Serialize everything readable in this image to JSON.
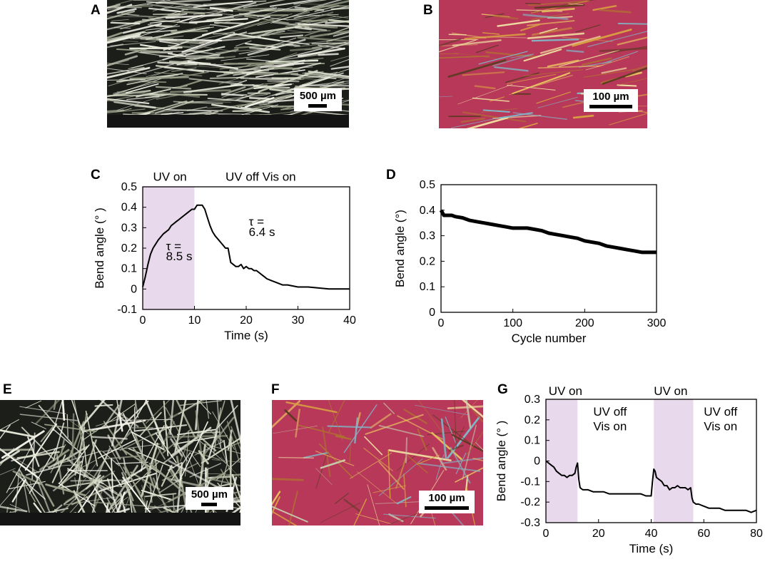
{
  "panels": {
    "A": {
      "letter": "A",
      "scale": "500 µm"
    },
    "B": {
      "letter": "B",
      "scale": "100 µm"
    },
    "C": {
      "letter": "C"
    },
    "D": {
      "letter": "D"
    },
    "E": {
      "letter": "E",
      "scale": "500 µm"
    },
    "F": {
      "letter": "F",
      "scale": "100 µm"
    },
    "G": {
      "letter": "G"
    }
  },
  "colors": {
    "uv_band": "#e8d9ec",
    "photo_dark": "#1c1e1a",
    "photo_magenta": "#b8385a",
    "trace": "#000000"
  },
  "chart_data": [
    {
      "id": "C",
      "type": "line",
      "title": "",
      "xlabel": "Time (s)",
      "ylabel": "Bend angle (° )",
      "xlim": [
        0,
        40
      ],
      "ylim": [
        -0.1,
        0.5
      ],
      "xticks": [
        0,
        10,
        20,
        30,
        40
      ],
      "yticks": [
        -0.1,
        0,
        0.1,
        0.2,
        0.3,
        0.4,
        0.5
      ],
      "shaded": [
        [
          0,
          10
        ]
      ],
      "annotations": [
        {
          "text": "UV on",
          "x": 2,
          "y": 0.53
        },
        {
          "text": "UV off  Vis on",
          "x": 16,
          "y": 0.53
        },
        {
          "text": "τ =",
          "x": 4.5,
          "y": 0.19
        },
        {
          "text": "8.5 s",
          "x": 4.5,
          "y": 0.14
        },
        {
          "text": "τ =",
          "x": 20.5,
          "y": 0.31
        },
        {
          "text": "6.4 s",
          "x": 20.5,
          "y": 0.26
        }
      ],
      "series": [
        {
          "x": [
            0,
            0.5,
            1,
            1.5,
            2,
            2.5,
            3,
            4,
            5,
            5.5,
            6,
            6.5,
            7,
            7.5,
            8,
            8.5,
            9,
            9.5,
            10,
            10.5,
            11,
            11.5,
            12,
            12.5,
            13,
            13.5,
            14,
            15,
            16,
            16.5,
            17,
            17.5,
            18,
            18.5,
            19,
            19.5,
            20,
            20.5,
            21,
            21.5,
            22,
            22.5,
            23,
            23.5,
            24,
            25,
            26,
            27,
            28,
            30,
            32,
            34,
            36,
            38,
            40
          ],
          "y": [
            0.01,
            0.06,
            0.12,
            0.17,
            0.2,
            0.22,
            0.24,
            0.27,
            0.29,
            0.31,
            0.32,
            0.33,
            0.34,
            0.35,
            0.36,
            0.37,
            0.38,
            0.39,
            0.39,
            0.41,
            0.41,
            0.41,
            0.39,
            0.35,
            0.31,
            0.28,
            0.26,
            0.23,
            0.2,
            0.2,
            0.13,
            0.12,
            0.11,
            0.11,
            0.12,
            0.1,
            0.11,
            0.1,
            0.1,
            0.09,
            0.09,
            0.08,
            0.07,
            0.06,
            0.05,
            0.04,
            0.03,
            0.02,
            0.02,
            0.01,
            0.01,
            0.005,
            0,
            0,
            0
          ]
        }
      ]
    },
    {
      "id": "D",
      "type": "line",
      "title": "",
      "xlabel": "Cycle number",
      "ylabel": "Bend angle (°)",
      "xlim": [
        0,
        300
      ],
      "ylim": [
        0,
        0.5
      ],
      "xticks": [
        0,
        100,
        200,
        300
      ],
      "yticks": [
        0,
        0.1,
        0.2,
        0.3,
        0.4,
        0.5
      ],
      "series": [
        {
          "x": [
            0,
            2,
            4,
            6,
            10,
            15,
            20,
            30,
            40,
            50,
            60,
            70,
            80,
            90,
            100,
            110,
            120,
            130,
            140,
            150,
            160,
            170,
            180,
            190,
            200,
            210,
            220,
            230,
            240,
            250,
            260,
            270,
            280,
            290,
            300
          ],
          "y": [
            0.4,
            0.39,
            0.38,
            0.38,
            0.38,
            0.38,
            0.375,
            0.37,
            0.36,
            0.355,
            0.35,
            0.345,
            0.34,
            0.335,
            0.33,
            0.33,
            0.33,
            0.325,
            0.32,
            0.31,
            0.305,
            0.3,
            0.295,
            0.29,
            0.28,
            0.275,
            0.27,
            0.26,
            0.255,
            0.25,
            0.245,
            0.24,
            0.235,
            0.235,
            0.235
          ]
        }
      ]
    },
    {
      "id": "G",
      "type": "line",
      "title": "",
      "xlabel": "Time (s)",
      "ylabel": "Bend angle (° )",
      "xlim": [
        0,
        80
      ],
      "ylim": [
        -0.3,
        0.3
      ],
      "xticks": [
        0,
        20,
        40,
        60,
        80
      ],
      "yticks": [
        -0.3,
        -0.2,
        -0.1,
        0,
        0.1,
        0.2,
        0.3
      ],
      "shaded": [
        [
          0,
          12
        ],
        [
          41,
          56
        ]
      ],
      "annotations": [
        {
          "text": "UV on",
          "x": 1,
          "y": 0.32
        },
        {
          "text": "UV on",
          "x": 41,
          "y": 0.32
        },
        {
          "text": "UV off",
          "x": 18,
          "y": 0.22
        },
        {
          "text": "Vis on",
          "x": 18,
          "y": 0.15
        },
        {
          "text": "UV off",
          "x": 60,
          "y": 0.22
        },
        {
          "text": "Vis on",
          "x": 60,
          "y": 0.15
        }
      ],
      "series": [
        {
          "x": [
            0,
            1,
            2,
            3,
            4,
            5,
            6,
            7,
            8,
            9,
            10,
            11,
            11.5,
            12,
            12.5,
            13,
            14,
            16,
            18,
            20,
            22,
            24,
            26,
            28,
            30,
            32,
            34,
            36,
            38,
            40,
            40.5,
            41,
            41.5,
            42,
            43,
            44,
            45,
            46,
            47,
            48,
            49,
            50,
            51,
            52,
            53,
            54,
            55,
            55.5,
            56,
            57,
            58,
            60,
            62,
            64,
            66,
            68,
            70,
            72,
            74,
            76,
            78,
            80
          ],
          "y": [
            0,
            -0.01,
            -0.02,
            -0.03,
            -0.05,
            -0.06,
            -0.07,
            -0.07,
            -0.08,
            -0.07,
            -0.07,
            -0.06,
            -0.03,
            -0.01,
            -0.09,
            -0.13,
            -0.14,
            -0.14,
            -0.15,
            -0.15,
            -0.15,
            -0.16,
            -0.16,
            -0.16,
            -0.16,
            -0.16,
            -0.16,
            -0.16,
            -0.17,
            -0.17,
            -0.1,
            -0.04,
            -0.05,
            -0.08,
            -0.09,
            -0.1,
            -0.12,
            -0.12,
            -0.14,
            -0.13,
            -0.13,
            -0.12,
            -0.13,
            -0.13,
            -0.13,
            -0.14,
            -0.13,
            -0.18,
            -0.2,
            -0.21,
            -0.21,
            -0.22,
            -0.23,
            -0.23,
            -0.23,
            -0.24,
            -0.24,
            -0.24,
            -0.24,
            -0.24,
            -0.25,
            -0.24
          ]
        }
      ]
    }
  ]
}
